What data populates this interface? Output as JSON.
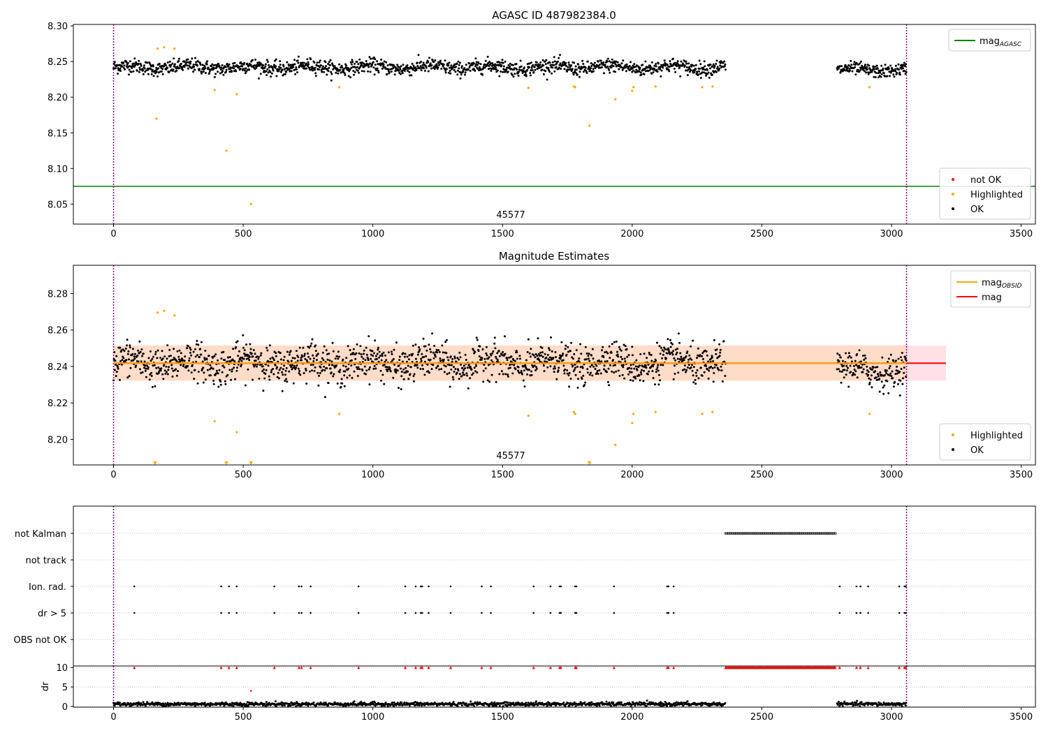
{
  "figure": {
    "agasc_title": "AGASC ID 487982384.0",
    "estimates_title": "Magnitude Estimates",
    "obsid_label": "45577"
  },
  "chart_data": [
    {
      "type": "scatter",
      "title": "AGASC ID 487982384.0",
      "xlabel": "",
      "ylabel": "",
      "xlim": [
        -155,
        3555
      ],
      "ylim": [
        8.022,
        8.302
      ],
      "xticks": [
        0,
        500,
        1000,
        1500,
        2000,
        2500,
        3000,
        3500
      ],
      "yticks": [
        8.05,
        8.1,
        8.15,
        8.2,
        8.25,
        8.3
      ],
      "xticklabels": [
        "0",
        "500",
        "1000",
        "1500",
        "2000",
        "2500",
        "3000",
        "3500"
      ],
      "yticklabels": [
        "8.05",
        "8.10",
        "8.15",
        "8.20",
        "8.25",
        "8.30"
      ],
      "grid": false,
      "hlines": [
        {
          "name": "mag_AGASC",
          "y": 8.075,
          "color": "#008000"
        }
      ],
      "vlines": [
        {
          "x": 0,
          "color": "#800080",
          "style": "dotted"
        },
        {
          "x": 3058,
          "color": "#800080",
          "style": "dotted"
        }
      ],
      "legends": [
        {
          "placement": "top-right",
          "entries": [
            {
              "label": "mag",
              "subscript": "AGASC",
              "kind": "line",
              "color": "#008000"
            }
          ]
        },
        {
          "placement": "bottom-right",
          "entries": [
            {
              "label": "not OK",
              "kind": "dot",
              "color": "#ff0000"
            },
            {
              "label": "Highlighted",
              "kind": "dot",
              "color": "#ffa500"
            },
            {
              "label": "OK",
              "kind": "dot",
              "color": "#000000"
            }
          ]
        }
      ],
      "annotations": [
        {
          "text": "45577",
          "x": 1530,
          "y": 8.027
        }
      ],
      "series": [
        {
          "name": "OK",
          "color": "#000000",
          "segments": [
            {
              "x_range": [
                0,
                2360
              ],
              "mean": 8.242,
              "spread": 0.009
            },
            {
              "x_range": [
                2790,
                3058
              ],
              "mean": 8.238,
              "spread": 0.008
            }
          ]
        },
        {
          "name": "Highlighted",
          "color": "#ffa500",
          "points": [
            [
              165,
              8.17
            ],
            [
              170,
              8.268
            ],
            [
              195,
              8.27
            ],
            [
              235,
              8.268
            ],
            [
              390,
              8.21
            ],
            [
              435,
              8.125
            ],
            [
              475,
              8.204
            ],
            [
              530,
              8.05
            ],
            [
              870,
              8.214
            ],
            [
              1600,
              8.213
            ],
            [
              1775,
              8.215
            ],
            [
              1780,
              8.214
            ],
            [
              1835,
              8.16
            ],
            [
              1935,
              8.197
            ],
            [
              2000,
              8.209
            ],
            [
              2005,
              8.214
            ],
            [
              2090,
              8.215
            ],
            [
              2270,
              8.214
            ],
            [
              2310,
              8.215
            ],
            [
              2915,
              8.214
            ]
          ]
        }
      ]
    },
    {
      "type": "scatter",
      "title": "Magnitude Estimates",
      "xlabel": "",
      "ylabel": "",
      "xlim": [
        -155,
        3555
      ],
      "ylim": [
        8.186,
        8.2955
      ],
      "xticks": [
        0,
        500,
        1000,
        1500,
        2000,
        2500,
        3000,
        3500
      ],
      "yticks": [
        8.2,
        8.22,
        8.24,
        8.26,
        8.28
      ],
      "xticklabels": [
        "0",
        "500",
        "1000",
        "1500",
        "2000",
        "2500",
        "3000",
        "3500"
      ],
      "yticklabels": [
        "8.20",
        "8.22",
        "8.24",
        "8.26",
        "8.28"
      ],
      "grid": false,
      "lines": [
        {
          "name": "mag",
          "y": 8.2418,
          "x_range": [
            0,
            3210
          ],
          "color": "#ff0000"
        },
        {
          "name": "mag_OBSID",
          "y": 8.2418,
          "x_range": [
            0,
            3058
          ],
          "color": "#ffa500"
        }
      ],
      "bands": [
        {
          "y_range": [
            8.2322,
            8.2515
          ],
          "x_range": [
            0,
            3210
          ],
          "color": "#ffe0e6"
        },
        {
          "y_range": [
            8.2322,
            8.2515
          ],
          "x_range": [
            0,
            3058
          ],
          "color": "#ffdcc8"
        }
      ],
      "vlines": [
        {
          "x": 0,
          "color": "#800080",
          "style": "dotted"
        },
        {
          "x": 3058,
          "color": "#800080",
          "style": "dotted"
        }
      ],
      "legends": [
        {
          "placement": "top-right",
          "entries": [
            {
              "label": "mag",
              "subscript": "OBSID",
              "kind": "line",
              "color": "#ffa500"
            },
            {
              "label": "mag",
              "kind": "line",
              "color": "#ff0000"
            }
          ]
        },
        {
          "placement": "bottom-right",
          "entries": [
            {
              "label": "Highlighted",
              "kind": "dot",
              "color": "#ffa500"
            },
            {
              "label": "OK",
              "kind": "dot",
              "color": "#000000"
            }
          ]
        }
      ],
      "annotations": [
        {
          "text": "45577",
          "x": 1530,
          "y": 8.1895
        }
      ],
      "series": [
        {
          "name": "OK",
          "color": "#000000",
          "segments": [
            {
              "x_range": [
                0,
                2360
              ],
              "mean": 8.242,
              "spread": 0.009
            },
            {
              "x_range": [
                2790,
                3058
              ],
              "mean": 8.238,
              "spread": 0.008
            }
          ]
        },
        {
          "name": "Highlighted",
          "color": "#ffa500",
          "points": [
            [
              170,
              8.2695
            ],
            [
              195,
              8.2705
            ],
            [
              235,
              8.268
            ],
            [
              390,
              8.21
            ],
            [
              475,
              8.204
            ],
            [
              870,
              8.214
            ],
            [
              1600,
              8.213
            ],
            [
              1775,
              8.215
            ],
            [
              1780,
              8.214
            ],
            [
              1935,
              8.197
            ],
            [
              2000,
              8.209
            ],
            [
              2005,
              8.214
            ],
            [
              2090,
              8.215
            ],
            [
              2270,
              8.214
            ],
            [
              2310,
              8.215
            ],
            [
              2915,
              8.214
            ]
          ]
        },
        {
          "name": "Highlighted (below range)",
          "color": "#ffa500",
          "marker": "triangle-down",
          "points": [
            [
              160,
              8.186
            ],
            [
              435,
              8.186
            ],
            [
              530,
              8.186
            ],
            [
              1835,
              8.186
            ]
          ]
        }
      ]
    },
    {
      "type": "scatter",
      "title": "",
      "xlabel": "",
      "ylabel": "",
      "xlim": [
        -155,
        3555
      ],
      "categories": [
        "not Kalman",
        "not track",
        "Ion. rad.",
        "dr > 5",
        "OBS not OK"
      ],
      "grid": true,
      "vlines": [
        {
          "x": 0,
          "color": "#800080",
          "style": "dotted"
        },
        {
          "x": 3058,
          "color": "#800080",
          "style": "dotted"
        }
      ],
      "flags": {
        "not Kalman": {
          "x_range": [
            2360,
            2785
          ]
        },
        "not track": {
          "points": []
        },
        "Ion. rad.": {
          "points": [
            80,
            415,
            445,
            475,
            620,
            715,
            725,
            760,
            945,
            1125,
            1165,
            1185,
            1190,
            1215,
            1300,
            1420,
            1455,
            1620,
            1685,
            1720,
            1725,
            1780,
            1785,
            1930,
            2135,
            2140,
            2160,
            2800,
            2865,
            2880,
            2910,
            3030,
            3050,
            3055
          ]
        },
        "dr > 5": {
          "points": [
            80,
            415,
            445,
            475,
            620,
            715,
            725,
            760,
            945,
            1125,
            1165,
            1185,
            1190,
            1215,
            1300,
            1420,
            1455,
            1620,
            1685,
            1720,
            1725,
            1780,
            1785,
            1930,
            2135,
            2140,
            2160,
            2800,
            2865,
            2880,
            2910,
            3030,
            3050,
            3055
          ]
        },
        "OBS not OK": {
          "points": []
        }
      }
    },
    {
      "type": "scatter",
      "title": "",
      "xlabel": "",
      "ylabel": "dr",
      "xlim": [
        -155,
        3555
      ],
      "ylim": [
        -0.2,
        10.4
      ],
      "xticks": [
        0,
        500,
        1000,
        1500,
        2000,
        2500,
        3000,
        3500
      ],
      "yticks": [
        0,
        5,
        10
      ],
      "xticklabels": [
        "0",
        "500",
        "1000",
        "1500",
        "2000",
        "2500",
        "3000",
        "3500"
      ],
      "yticklabels": [
        "0",
        "5",
        "10"
      ],
      "grid": true,
      "vlines": [
        {
          "x": 0,
          "color": "#800080",
          "style": "dotted"
        },
        {
          "x": 3058,
          "color": "#800080",
          "style": "dotted"
        }
      ],
      "series": [
        {
          "name": "OK",
          "color": "#000000",
          "segments": [
            {
              "x_range": [
                0,
                2360
              ],
              "mean": 0.6,
              "spread": 0.25
            },
            {
              "x_range": [
                2790,
                3058
              ],
              "mean": 0.6,
              "spread": 0.25
            }
          ]
        },
        {
          "name": "not OK",
          "color": "#ff0000",
          "points_y10": [
            80,
            415,
            445,
            475,
            620,
            715,
            725,
            760,
            945,
            1125,
            1165,
            1185,
            1190,
            1215,
            1300,
            1420,
            1455,
            1620,
            1685,
            1720,
            1725,
            1780,
            1785,
            1930,
            2135,
            2140,
            2160,
            2800,
            2865,
            2880,
            2910,
            3030,
            3050,
            3055
          ],
          "range_y10": [
            2360,
            2785
          ],
          "extra": [
            [
              530,
              4.0
            ]
          ]
        }
      ]
    }
  ]
}
